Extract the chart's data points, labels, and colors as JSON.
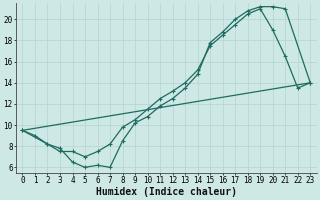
{
  "bg_color": "#cde8e5",
  "plot_bg_color": "#cde8e5",
  "line_color": "#1f6b60",
  "grid_color": "#b8d8d5",
  "xlabel": "Humidex (Indice chaleur)",
  "xlabel_fontsize": 7,
  "tick_fontsize": 5.5,
  "xlim": [
    -0.5,
    23.5
  ],
  "ylim": [
    5.5,
    21.5
  ],
  "yticks": [
    6,
    8,
    10,
    12,
    14,
    16,
    18,
    20
  ],
  "xticks": [
    0,
    1,
    2,
    3,
    4,
    5,
    6,
    7,
    8,
    9,
    10,
    11,
    12,
    13,
    14,
    15,
    16,
    17,
    18,
    19,
    20,
    21,
    22,
    23
  ],
  "line1_x": [
    0,
    1,
    2,
    3,
    4,
    5,
    6,
    7,
    8,
    9,
    10,
    11,
    12,
    13,
    14,
    15,
    16,
    17,
    18,
    19,
    20,
    21,
    22,
    23
  ],
  "line1_y": [
    9.5,
    9.0,
    8.2,
    7.5,
    7.5,
    7.0,
    7.5,
    8.2,
    9.8,
    10.5,
    11.5,
    12.5,
    13.2,
    14.0,
    15.2,
    17.5,
    18.5,
    19.5,
    20.5,
    21.0,
    19.0,
    16.5,
    13.5,
    14.0
  ],
  "line2_x": [
    0,
    2,
    3,
    4,
    5,
    6,
    7,
    8,
    9,
    10,
    11,
    12,
    13,
    14,
    15,
    16,
    17,
    18,
    19,
    20,
    21,
    23
  ],
  "line2_y": [
    9.5,
    8.2,
    7.8,
    6.5,
    6.0,
    6.2,
    6.0,
    8.5,
    10.2,
    10.8,
    11.8,
    12.5,
    13.5,
    14.8,
    17.8,
    18.8,
    20.0,
    20.8,
    21.2,
    21.2,
    21.0,
    14.0
  ],
  "line3_x": [
    0,
    23
  ],
  "line3_y": [
    9.5,
    14.0
  ]
}
